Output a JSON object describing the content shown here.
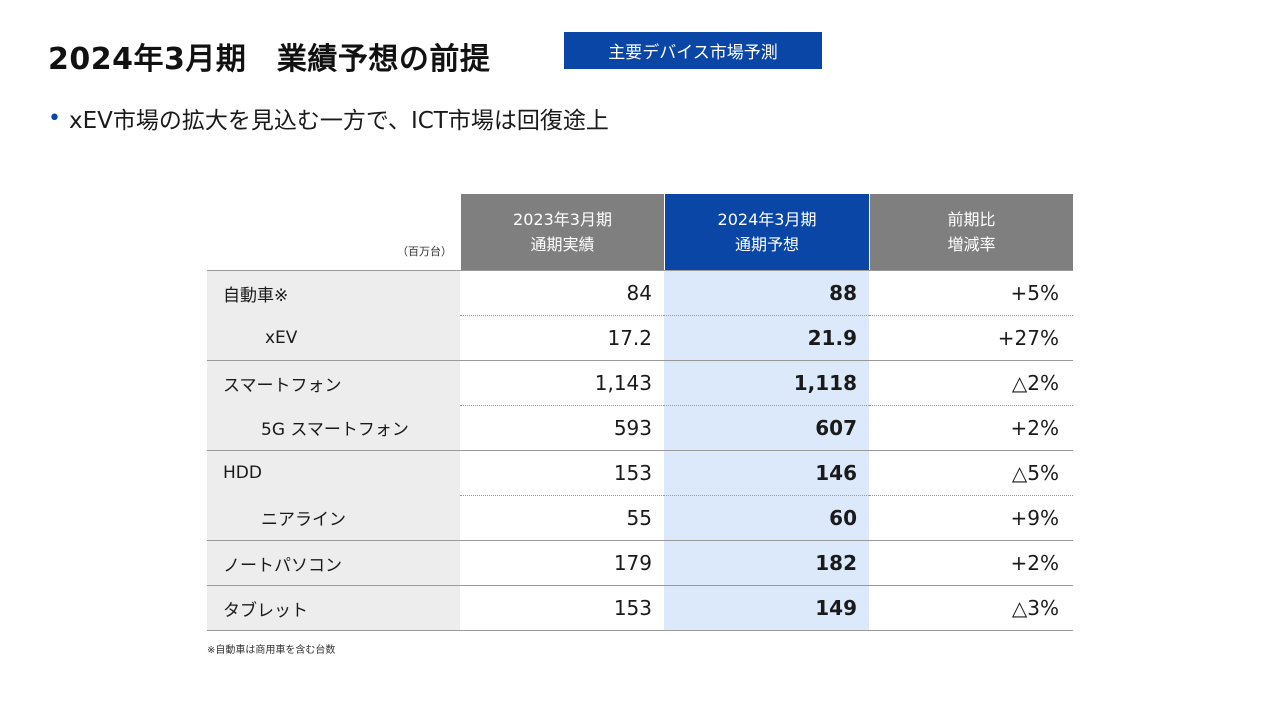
{
  "title": "2024年3月期　業績予想の前提",
  "badge": "主要デバイス市場予測",
  "bullet": "xEV市場の拡大を見込む一方で、ICT市場は回復途上",
  "table": {
    "unit": "（百万台）",
    "headers": [
      {
        "line1": "2023年3月期",
        "line2": "通期実績"
      },
      {
        "line1": "2024年3月期",
        "line2": "通期予想"
      },
      {
        "line1": "前期比",
        "line2": "増減率"
      }
    ],
    "rows": [
      {
        "label": "自動車※",
        "actual": "84",
        "forecast": "88",
        "change": "+5%"
      },
      {
        "label": "xEV",
        "actual": "17.2",
        "forecast": "21.9",
        "change": "+27%"
      },
      {
        "label": "スマートフォン",
        "actual": "1,143",
        "forecast": "1,118",
        "change": "△2%"
      },
      {
        "label": "5G スマートフォン",
        "actual": "593",
        "forecast": "607",
        "change": "+2%"
      },
      {
        "label": "HDD",
        "actual": "153",
        "forecast": "146",
        "change": "△5%"
      },
      {
        "label": "ニアライン",
        "actual": "55",
        "forecast": "60",
        "change": "+9%"
      },
      {
        "label": "ノートパソコン",
        "actual": "179",
        "forecast": "182",
        "change": "+2%"
      },
      {
        "label": "タブレット",
        "actual": "153",
        "forecast": "149",
        "change": "△3%"
      }
    ]
  },
  "footnote": "※自動車は商用車を含む台数"
}
